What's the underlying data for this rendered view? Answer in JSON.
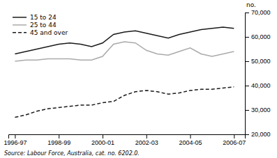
{
  "chart_data": {
    "type": "line",
    "ylabel": "no.",
    "annotations": [
      "Source: Labour Force, Australia, cat. no. 6202.0."
    ],
    "x": [
      1996.5,
      1997.0,
      1997.5,
      1998.0,
      1998.5,
      1999.0,
      1999.5,
      2000.0,
      2000.5,
      2001.0,
      2001.5,
      2002.0,
      2002.5,
      2003.0,
      2003.5,
      2004.0,
      2004.5,
      2005.0,
      2005.5,
      2006.0,
      2006.5
    ],
    "series": [
      {
        "name": "15 to 24",
        "color": "#1a1a1a",
        "line_style": "solid",
        "values": [
          53000,
          54000,
          55000,
          56000,
          57000,
          57500,
          57000,
          56000,
          57500,
          61000,
          62000,
          62500,
          61500,
          60500,
          59500,
          61000,
          62000,
          63000,
          63500,
          64000,
          63500
        ]
      },
      {
        "name": "25 to 44",
        "color": "#aaaaaa",
        "line_style": "solid",
        "values": [
          50000,
          50500,
          50500,
          51000,
          51000,
          51000,
          50500,
          50500,
          52000,
          57000,
          58000,
          57500,
          54500,
          53000,
          52500,
          54000,
          55500,
          53000,
          52000,
          53000,
          54000
        ]
      },
      {
        "name": "45 and over",
        "color": "#1a1a1a",
        "line_style": "dashed",
        "values": [
          27000,
          28000,
          29500,
          30500,
          31000,
          31500,
          32000,
          32000,
          33000,
          33500,
          36000,
          37500,
          38000,
          37500,
          36500,
          37000,
          38000,
          38500,
          38500,
          39000,
          39500
        ]
      }
    ],
    "xlim": [
      1996.2,
      2007.0
    ],
    "xticks": [
      {
        "value": 1996.5,
        "label": "1996-97"
      },
      {
        "value": 1998.5,
        "label": "1998-99"
      },
      {
        "value": 2000.5,
        "label": "2000-01"
      },
      {
        "value": 2002.5,
        "label": "2002-03"
      },
      {
        "value": 2004.5,
        "label": "2004-05"
      },
      {
        "value": 2006.5,
        "label": "2006-07"
      }
    ],
    "ylim": [
      20000,
      70000
    ],
    "yticks": [
      {
        "value": 20000,
        "label": "20,000"
      },
      {
        "value": 30000,
        "label": "30,000"
      },
      {
        "value": 40000,
        "label": "40,000"
      },
      {
        "value": 50000,
        "label": "50,000"
      },
      {
        "value": 60000,
        "label": "60,000"
      },
      {
        "value": 70000,
        "label": "70,000"
      }
    ],
    "grid": false,
    "legend": "upper left"
  }
}
